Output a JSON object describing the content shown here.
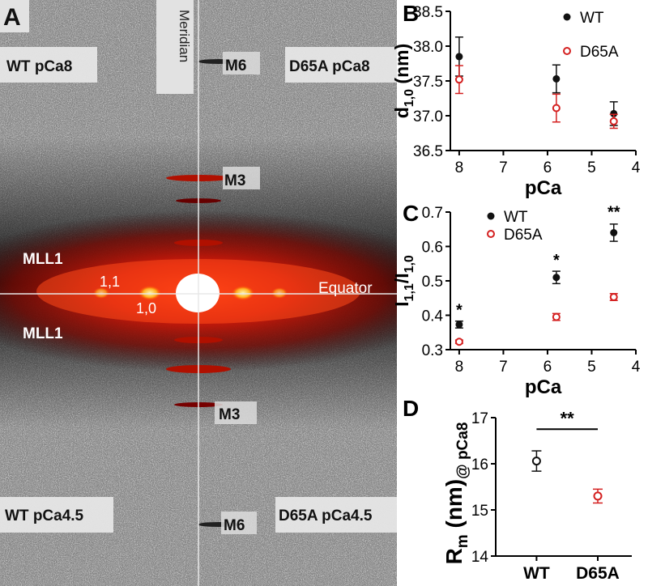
{
  "panel_a": {
    "panel_letter": "A",
    "labels": {
      "wt_pca8": "WT pCa8",
      "d65a_pca8": "D65A pCa8",
      "wt_pca45": "WT pCa4.5",
      "d65a_pca45": "D65A pCa4.5",
      "meridian": "Meridian",
      "equator": "Equator",
      "m6_top": "M6",
      "m3_top": "M3",
      "m3_bottom": "M3",
      "m6_bottom": "M6",
      "mll1_top": "MLL1",
      "mll1_bottom": "MLL1",
      "refl_11": "1,1",
      "refl_10": "1,0"
    }
  },
  "colors": {
    "wt": "#111111",
    "d65a": "#d42020",
    "axis": "#000000"
  },
  "chart_data": [
    {
      "id": "B",
      "panel_letter": "B",
      "type": "scatter",
      "title": "",
      "xlabel": "pCa",
      "ylabel": "d1,0 (nm)",
      "ylabel_main": "d",
      "ylabel_sub": "1,0",
      "ylabel_unit": " (nm)",
      "xlim": [
        8.2,
        4
      ],
      "ylim": [
        36.5,
        38.5
      ],
      "xticks": [
        8,
        7,
        6,
        5,
        4
      ],
      "yticks": [
        36.5,
        37.0,
        37.5,
        38.0,
        38.5
      ],
      "ytick_labels": [
        "36.5",
        "37.0",
        "37.5",
        "38.0",
        "38.5"
      ],
      "legend": "top-right",
      "series": [
        {
          "name": "WT",
          "marker": "filled",
          "color": "#111111",
          "x": [
            8,
            5.8,
            4.5
          ],
          "y": [
            37.85,
            37.53,
            37.03
          ],
          "err": [
            0.28,
            0.2,
            0.17
          ]
        },
        {
          "name": "D65A",
          "marker": "open",
          "color": "#d42020",
          "x": [
            8,
            5.8,
            4.5
          ],
          "y": [
            37.52,
            37.11,
            36.92
          ],
          "err": [
            0.2,
            0.2,
            0.1
          ]
        }
      ],
      "annotations": []
    },
    {
      "id": "C",
      "panel_letter": "C",
      "type": "scatter",
      "title": "",
      "xlabel": "pCa",
      "ylabel": "I1,1/I1,0",
      "ylabel_main": "I",
      "ylabel_sub": "1,1",
      "ylabel_mid": "/I",
      "ylabel_sub2": "1,0",
      "xlim": [
        8.2,
        4
      ],
      "ylim": [
        0.3,
        0.7
      ],
      "xticks": [
        8,
        7,
        6,
        5,
        4
      ],
      "yticks": [
        0.3,
        0.4,
        0.5,
        0.6,
        0.7
      ],
      "ytick_labels": [
        "0.3",
        "0.4",
        "0.5",
        "0.6",
        "0.7"
      ],
      "legend": "top-left",
      "series": [
        {
          "name": "WT",
          "marker": "filled",
          "color": "#111111",
          "x": [
            8,
            5.8,
            4.5
          ],
          "y": [
            0.373,
            0.51,
            0.64
          ],
          "err": [
            0.01,
            0.018,
            0.025
          ]
        },
        {
          "name": "D65A",
          "marker": "open",
          "color": "#d42020",
          "x": [
            8,
            5.8,
            4.5
          ],
          "y": [
            0.323,
            0.395,
            0.453
          ],
          "err": [
            0.005,
            0.01,
            0.01
          ]
        }
      ],
      "annotations": [
        {
          "text": "*",
          "x": 8,
          "y": 0.4
        },
        {
          "text": "*",
          "x": 5.8,
          "y": 0.545
        },
        {
          "text": "**",
          "x": 4.5,
          "y": 0.685
        }
      ]
    },
    {
      "id": "D",
      "panel_letter": "D",
      "type": "scatter",
      "title": "",
      "xlabel": "",
      "ylabel": "Rm (nm)@pCa8",
      "ylabel_main": "R",
      "ylabel_sub": "m",
      "ylabel_unit": " (nm)",
      "ylabel_sub2": "@ pCa8",
      "categories": [
        "WT",
        "D65A"
      ],
      "ylim": [
        14,
        17
      ],
      "yticks": [
        14,
        15,
        16,
        17
      ],
      "ytick_labels": [
        "14",
        "15",
        "16",
        "17"
      ],
      "series": [
        {
          "name": "WT",
          "marker": "open",
          "color": "#111111",
          "y": [
            16.06
          ],
          "err": [
            0.22
          ],
          "category": 0
        },
        {
          "name": "D65A",
          "marker": "open",
          "color": "#d42020",
          "y": [
            15.3
          ],
          "err": [
            0.15
          ],
          "category": 1
        }
      ],
      "significance": {
        "text": "**",
        "from": 0,
        "to": 1,
        "y": 16.75
      }
    }
  ]
}
